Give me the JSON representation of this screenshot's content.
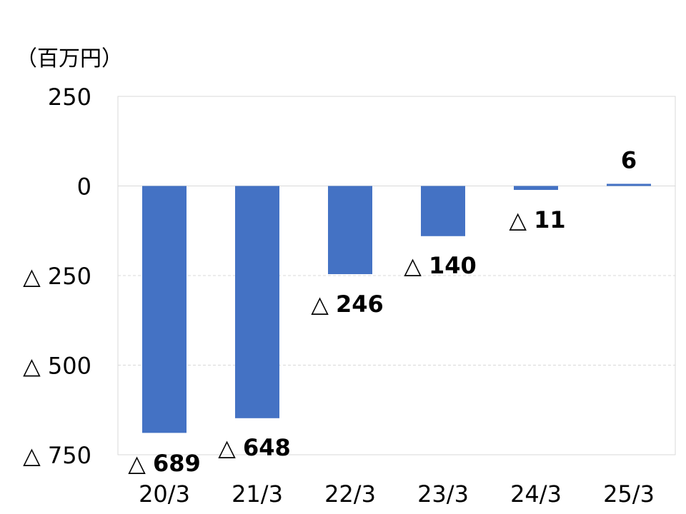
{
  "chart_data": {
    "type": "bar",
    "unit_label": "（百万円）",
    "categories": [
      "20/3",
      "21/3",
      "22/3",
      "23/3",
      "24/3",
      "25/3"
    ],
    "values": [
      -689,
      -648,
      -246,
      -140,
      -11,
      6
    ],
    "data_labels": [
      "△ 689",
      "△ 648",
      "△ 246",
      "△ 140",
      "△ 11",
      "6"
    ],
    "ylim": [
      -750,
      250
    ],
    "y_ticks": [
      250,
      0,
      -250,
      -500,
      -750
    ],
    "y_tick_labels": [
      "250",
      "0",
      "△ 250",
      "△ 500",
      "△ 750"
    ],
    "bar_color": "#4472C4",
    "grid": true,
    "legend": "none"
  }
}
